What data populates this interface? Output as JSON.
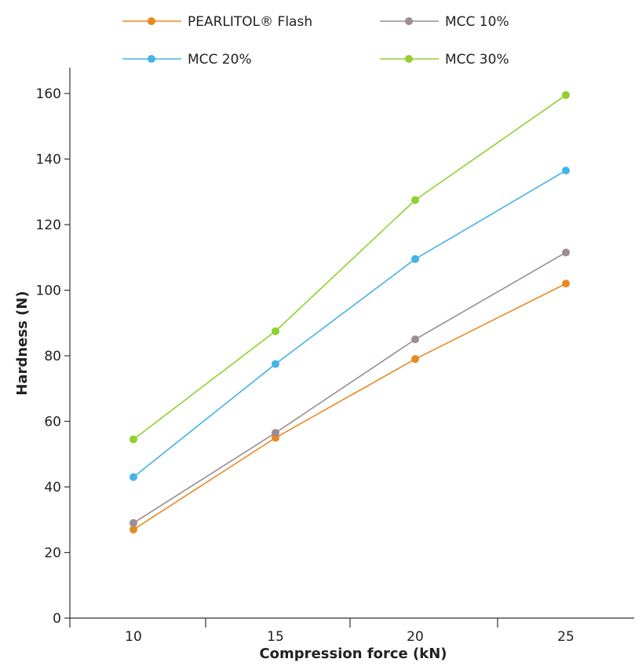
{
  "chart_data": {
    "type": "line",
    "x": [
      10,
      15,
      20,
      25
    ],
    "xlabel": "Compression force (kN)",
    "ylabel": "Hardness (N)",
    "xticks": [
      "10",
      "15",
      "20",
      "25"
    ],
    "yticks": [
      "0",
      "20",
      "40",
      "60",
      "80",
      "100",
      "120",
      "140",
      "160"
    ],
    "ylim": [
      0,
      168
    ],
    "legend_position": "top",
    "series": [
      {
        "name": "PEARLITOL® Flash",
        "color": "#E8891F",
        "values": [
          27,
          55,
          79,
          102
        ]
      },
      {
        "name": "MCC 10%",
        "color": "#9B8D91",
        "values": [
          29,
          56.5,
          85,
          111.5
        ]
      },
      {
        "name": "MCC 20%",
        "color": "#45B3E6",
        "values": [
          43,
          77.5,
          109.5,
          136.5
        ]
      },
      {
        "name": "MCC 30%",
        "color": "#8FD12E",
        "values": [
          54.5,
          87.5,
          127.5,
          159.5
        ]
      }
    ]
  }
}
